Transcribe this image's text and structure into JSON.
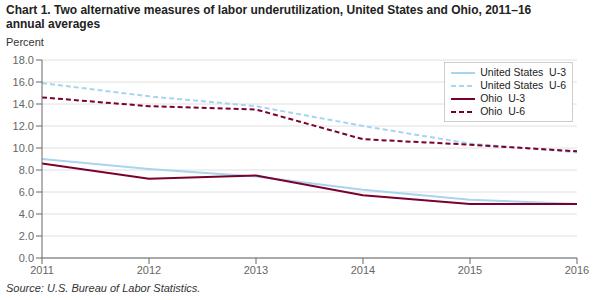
{
  "chart_data": {
    "type": "line",
    "title": "Chart 1. Two alternative measures of labor underutilization, United States and Ohio, 2011–16",
    "subtitle": "annual averages",
    "y_label": "Percent",
    "source": "Source: U.S. Bureau of Labor Statistics.",
    "x": [
      2011,
      2012,
      2013,
      2014,
      2015,
      2016
    ],
    "xlim": [
      2011,
      2016
    ],
    "xticks": [
      2011,
      2012,
      2013,
      2014,
      2015,
      2016
    ],
    "ylim": [
      0,
      18
    ],
    "yticks": [
      {
        "value": 0,
        "label": "0.0"
      },
      {
        "value": 2,
        "label": "2.0"
      },
      {
        "value": 4,
        "label": "4.0"
      },
      {
        "value": 6,
        "label": "6.0"
      },
      {
        "value": 8,
        "label": "8.0"
      },
      {
        "value": 10,
        "label": "10.0"
      },
      {
        "value": 12,
        "label": "12.0"
      },
      {
        "value": 14,
        "label": "14.0"
      },
      {
        "value": 16,
        "label": "16.0"
      },
      {
        "value": 18,
        "label": "18.0"
      }
    ],
    "grid": true,
    "legend": "upper right",
    "series": [
      {
        "name": "United States  U-3",
        "color": "#a8d4f0",
        "line_style": "solid",
        "values": [
          9.0,
          8.1,
          7.4,
          6.2,
          5.3,
          4.9
        ]
      },
      {
        "name": "United States  U-6",
        "color": "#a8d4f0",
        "line_style": "dashed",
        "values": [
          15.9,
          14.7,
          13.8,
          12.0,
          10.4,
          9.6
        ]
      },
      {
        "name": "Ohio  U-3",
        "color": "#7a0030",
        "line_style": "solid",
        "values": [
          8.6,
          7.2,
          7.5,
          5.7,
          4.9,
          4.9
        ]
      },
      {
        "name": "Ohio  U-6",
        "color": "#7a0030",
        "line_style": "dashed",
        "values": [
          14.6,
          13.8,
          13.5,
          10.8,
          10.3,
          9.7
        ]
      }
    ]
  }
}
